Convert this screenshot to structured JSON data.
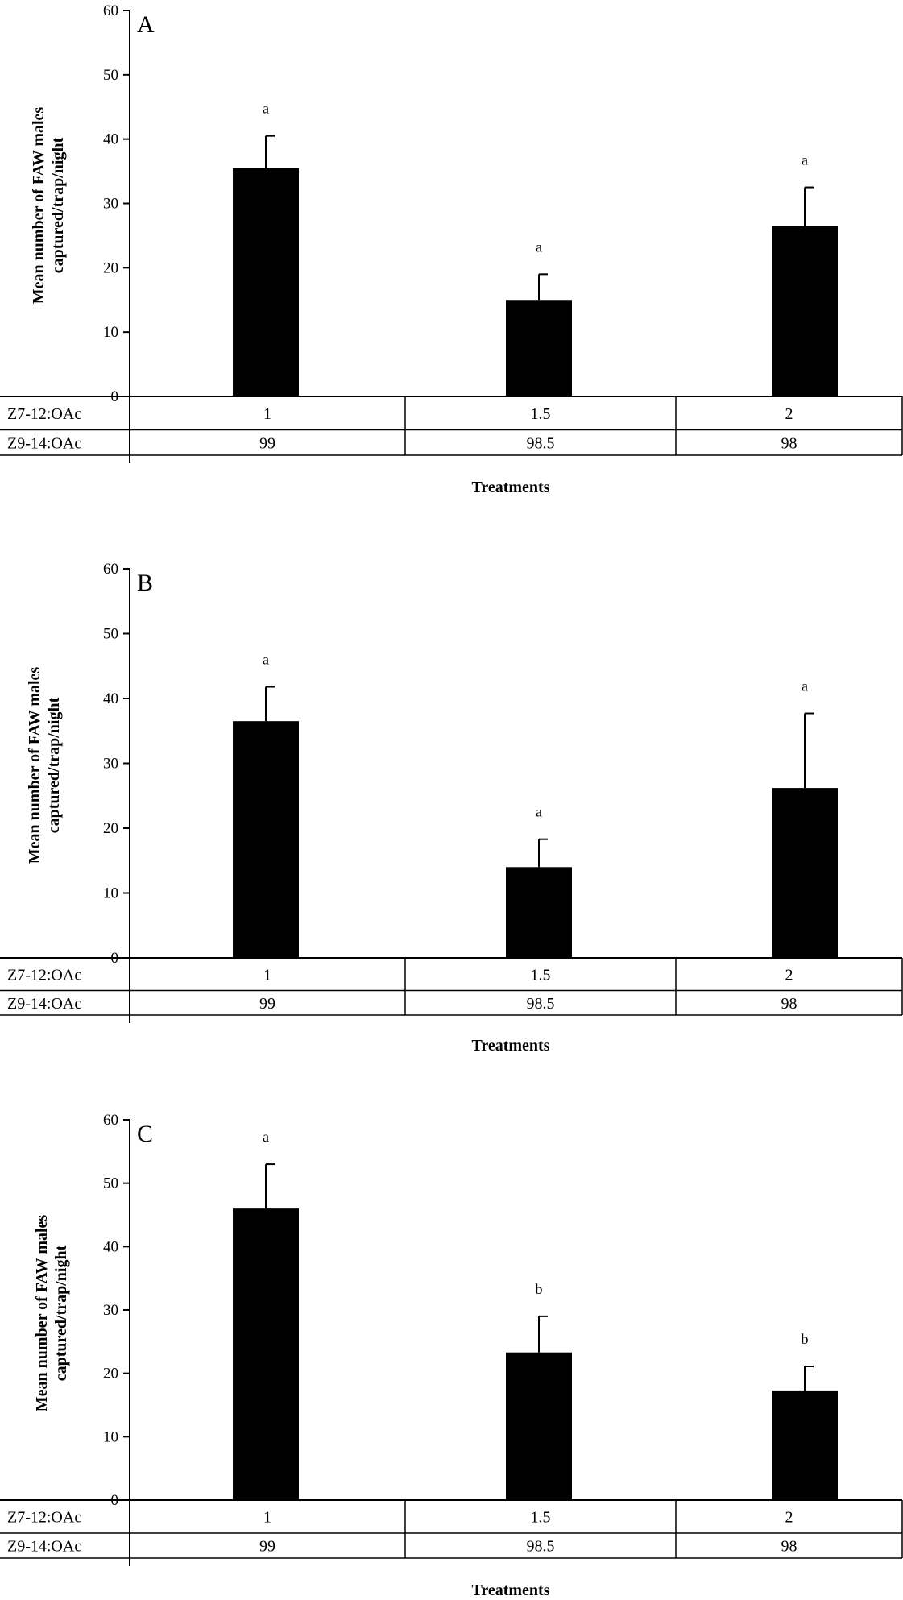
{
  "chart_data": [
    {
      "type": "bar",
      "panel_label": "A",
      "categories": [
        "1",
        "1.5",
        "2"
      ],
      "values": [
        35.5,
        15,
        26.5
      ],
      "errors": [
        5,
        4,
        6
      ],
      "significance": [
        "a",
        "a",
        "a"
      ],
      "ylabel": [
        "Mean number of FAW males",
        "captured/trap/night"
      ],
      "xlabel": "Treatments",
      "ylim": [
        0,
        60
      ],
      "yticks": [
        "0",
        "10",
        "20",
        "30",
        "40",
        "50",
        "60"
      ],
      "table": [
        {
          "label": "Z7-12:OAc",
          "cells": [
            "1",
            "1.5",
            "2"
          ]
        },
        {
          "label": "Z9-14:OAc",
          "cells": [
            "99",
            "98.5",
            "98"
          ]
        }
      ]
    },
    {
      "type": "bar",
      "panel_label": "B",
      "categories": [
        "1",
        "1.5",
        "2"
      ],
      "values": [
        36.5,
        14,
        26.2
      ],
      "errors": [
        5.3,
        4.3,
        11.5
      ],
      "significance": [
        "a",
        "a",
        "a"
      ],
      "ylabel": [
        "Mean number of FAW males",
        "captured/trap/night"
      ],
      "xlabel": "Treatments",
      "ylim": [
        0,
        60
      ],
      "yticks": [
        "0",
        "10",
        "20",
        "30",
        "40",
        "50",
        "60"
      ],
      "table": [
        {
          "label": "Z7-12:OAc",
          "cells": [
            "1",
            "1.5",
            "2"
          ]
        },
        {
          "label": "Z9-14:OAc",
          "cells": [
            "99",
            "98.5",
            "98"
          ]
        }
      ]
    },
    {
      "type": "bar",
      "panel_label": "C",
      "categories": [
        "1",
        "1.5",
        "2"
      ],
      "values": [
        46,
        23.3,
        17.3
      ],
      "errors": [
        7,
        5.7,
        3.8
      ],
      "significance": [
        "a",
        "b",
        "b"
      ],
      "ylabel": [
        "Mean number of FAW males",
        "captured/trap/night"
      ],
      "xlabel": "Treatments",
      "ylim": [
        0,
        60
      ],
      "yticks": [
        "0",
        "10",
        "20",
        "30",
        "40",
        "50",
        "60"
      ],
      "table": [
        {
          "label": "Z7-12:OAc",
          "cells": [
            "1",
            "1.5",
            "2"
          ]
        },
        {
          "label": "Z9-14:OAc",
          "cells": [
            "99",
            "98.5",
            "98"
          ]
        }
      ]
    }
  ]
}
